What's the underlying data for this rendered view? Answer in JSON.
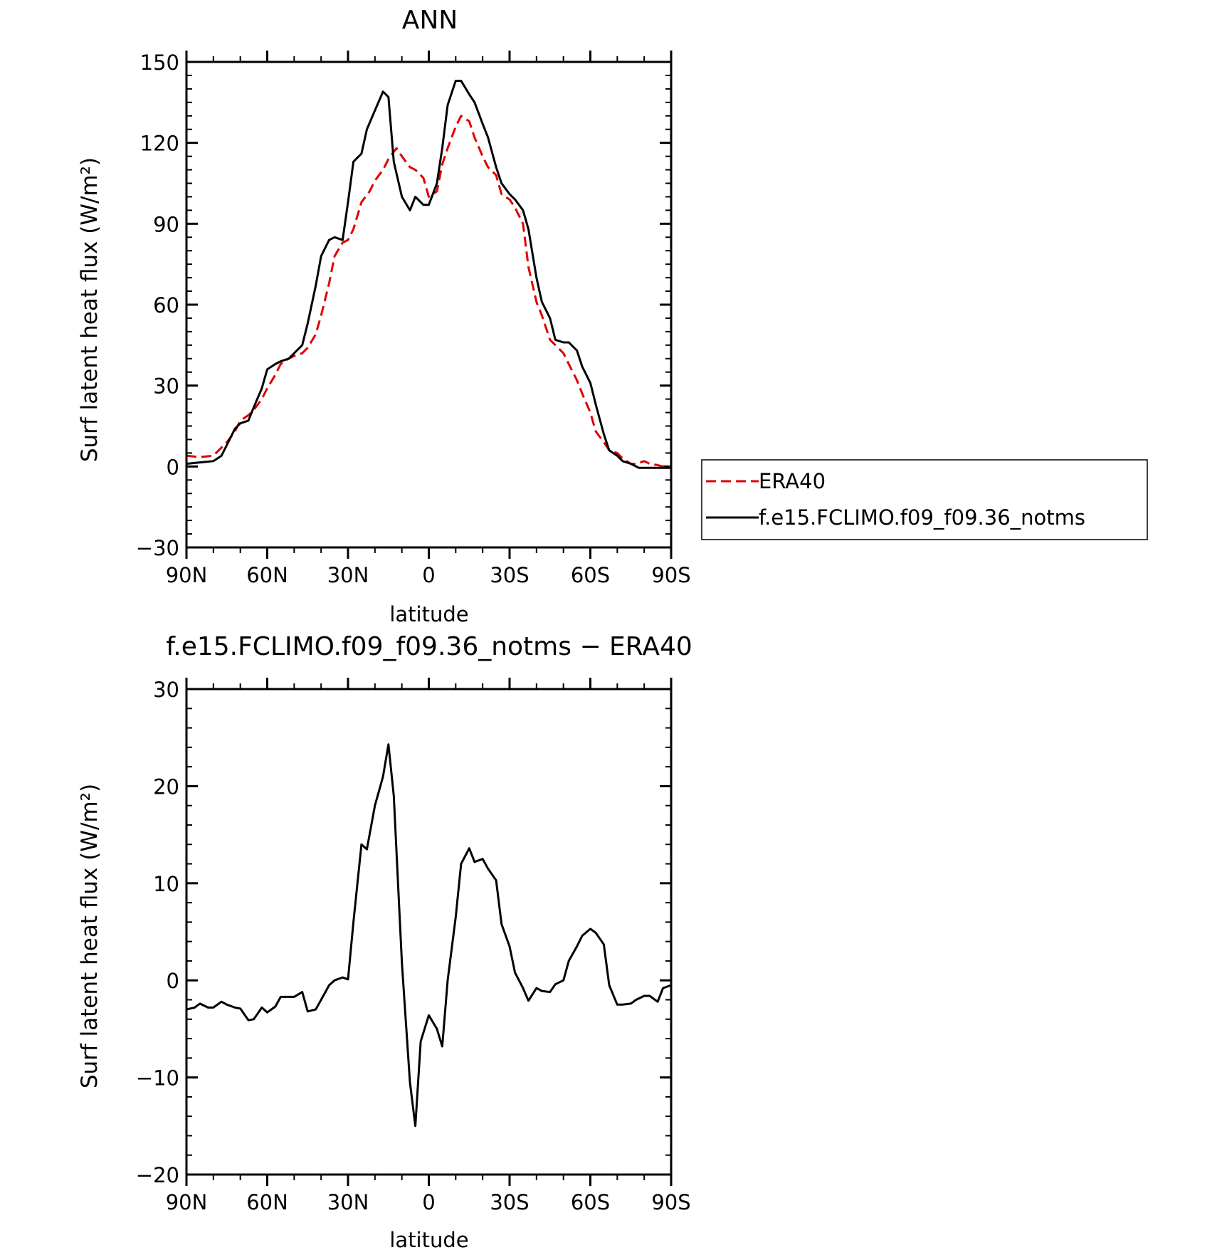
{
  "chart_data": [
    {
      "type": "line",
      "title": "ANN",
      "xlabel": "latitude",
      "ylabel": "Surf latent heat flux (W/m²)",
      "xlim": [
        90,
        -90
      ],
      "ylim": [
        -30,
        150
      ],
      "x_ticks": [
        {
          "value": 90,
          "label": "90N"
        },
        {
          "value": 60,
          "label": "60N"
        },
        {
          "value": 30,
          "label": "30N"
        },
        {
          "value": 0,
          "label": "0"
        },
        {
          "value": -30,
          "label": "30S"
        },
        {
          "value": -60,
          "label": "60S"
        },
        {
          "value": -90,
          "label": "90S"
        }
      ],
      "y_ticks": [
        {
          "value": -30,
          "label": "−30"
        },
        {
          "value": 0,
          "label": "0"
        },
        {
          "value": 30,
          "label": "30"
        },
        {
          "value": 60,
          "label": "60"
        },
        {
          "value": 90,
          "label": "90"
        },
        {
          "value": 120,
          "label": "120"
        },
        {
          "value": 150,
          "label": "150"
        }
      ],
      "legend_position": "right",
      "series": [
        {
          "name": "ERA40",
          "color": "#e00000",
          "dash": "dashed",
          "x": [
            90,
            85,
            80,
            75,
            72,
            70,
            67,
            65,
            62,
            60,
            57,
            55,
            52,
            50,
            47,
            45,
            42,
            40,
            37,
            35,
            32,
            30,
            28,
            25,
            22,
            20,
            17,
            15,
            12,
            10,
            7,
            5,
            2,
            0,
            -3,
            -5,
            -7,
            -10,
            -12,
            -15,
            -17,
            -20,
            -22,
            -25,
            -27,
            -30,
            -32,
            -35,
            -37,
            -40,
            -42,
            -45,
            -47,
            -50,
            -52,
            -55,
            -57,
            -60,
            -62,
            -65,
            -67,
            -70,
            -72,
            -75,
            -77,
            -80,
            -82,
            -85,
            -87,
            -90
          ],
          "y": [
            4,
            3.5,
            4,
            9,
            13,
            17,
            19,
            21,
            25,
            29,
            34,
            38,
            40,
            41,
            42,
            44,
            49,
            56,
            68,
            78,
            83,
            84,
            88,
            98,
            102,
            106,
            110,
            114,
            118,
            115,
            111,
            110,
            107,
            100,
            102,
            112,
            118,
            126,
            130,
            128,
            122,
            115,
            111,
            108,
            101,
            99,
            96,
            90,
            74,
            61,
            56,
            47,
            45,
            42,
            38,
            32,
            27,
            20,
            13,
            9,
            6,
            5,
            3,
            1,
            1,
            2,
            1,
            0.5,
            0,
            0
          ]
        },
        {
          "name": "f.e15.FCLIMO.f09_f09.36_notms",
          "color": "#000000",
          "dash": "solid",
          "x": [
            90,
            85,
            80,
            77,
            75,
            72,
            70,
            67,
            65,
            62,
            60,
            57,
            55,
            52,
            50,
            47,
            45,
            42,
            40,
            37,
            35,
            32,
            30,
            28,
            25,
            23,
            20,
            17,
            15,
            13,
            10,
            7,
            5,
            2,
            0,
            -3,
            -5,
            -7,
            -10,
            -12,
            -15,
            -17,
            -20,
            -22,
            -25,
            -27,
            -30,
            -32,
            -35,
            -37,
            -40,
            -42,
            -45,
            -47,
            -50,
            -52,
            -55,
            -57,
            -60,
            -62,
            -65,
            -67,
            -70,
            -72,
            -75,
            -78,
            -80,
            -82,
            -85,
            -87,
            -90
          ],
          "y": [
            1,
            1.5,
            2,
            4,
            8,
            14,
            16,
            17,
            22,
            29,
            36,
            38,
            39,
            40,
            42,
            45,
            53,
            67,
            78,
            84,
            85,
            84,
            98,
            113,
            116,
            125,
            132,
            139,
            137,
            113,
            100,
            95,
            100,
            97,
            97,
            105,
            118,
            134,
            143,
            143,
            138,
            135,
            127,
            122,
            111,
            105,
            101,
            99,
            95,
            88,
            70,
            61,
            55,
            47,
            46,
            46,
            43,
            37,
            31,
            23,
            12,
            6,
            4,
            2,
            1,
            -0.5,
            -0.5,
            -0.5,
            -0.5,
            -0.5,
            -0.5
          ]
        }
      ]
    },
    {
      "type": "line",
      "title": "f.e15.FCLIMO.f09_f09.36_notms − ERA40",
      "xlabel": "latitude",
      "ylabel": "Surf latent heat flux (W/m²)",
      "xlim": [
        90,
        -90
      ],
      "ylim": [
        -20,
        30
      ],
      "x_ticks": [
        {
          "value": 90,
          "label": "90N"
        },
        {
          "value": 60,
          "label": "60N"
        },
        {
          "value": 30,
          "label": "30N"
        },
        {
          "value": 0,
          "label": "0"
        },
        {
          "value": -30,
          "label": "30S"
        },
        {
          "value": -60,
          "label": "60S"
        },
        {
          "value": -90,
          "label": "90S"
        }
      ],
      "y_ticks": [
        {
          "value": -20,
          "label": "−20"
        },
        {
          "value": -10,
          "label": "−10"
        },
        {
          "value": 0,
          "label": "0"
        },
        {
          "value": 10,
          "label": "10"
        },
        {
          "value": 20,
          "label": "20"
        },
        {
          "value": 30,
          "label": "30"
        }
      ],
      "series": [
        {
          "color": "#000000",
          "dash": "solid",
          "x": [
            90,
            87,
            85,
            82,
            80,
            77,
            75,
            72,
            70,
            67,
            65,
            62,
            60,
            57,
            55,
            52,
            50,
            47,
            45,
            42,
            40,
            37,
            35,
            32,
            30,
            28,
            25,
            23,
            20,
            17,
            15,
            13,
            10,
            7,
            5,
            3,
            0,
            -3,
            -5,
            -7,
            -10,
            -12,
            -15,
            -17,
            -20,
            -22,
            -25,
            -27,
            -30,
            -32,
            -35,
            -37,
            -40,
            -42,
            -45,
            -47,
            -50,
            -52,
            -55,
            -57,
            -60,
            -62,
            -65,
            -67,
            -70,
            -72,
            -75,
            -77,
            -80,
            -82,
            -85,
            -87,
            -90
          ],
          "y": [
            -3,
            -2.8,
            -2.4,
            -2.8,
            -2.8,
            -2.2,
            -2.5,
            -2.8,
            -2.9,
            -4.1,
            -4.0,
            -2.8,
            -3.3,
            -2.7,
            -1.7,
            -1.7,
            -1.7,
            -1.2,
            -3.2,
            -3.0,
            -2.0,
            -0.5,
            0.0,
            0.3,
            0.1,
            6.0,
            14.0,
            13.5,
            18.0,
            21.0,
            24.3,
            19.0,
            1.8,
            -10.5,
            -15.0,
            -6.3,
            -3.6,
            -5.0,
            -6.8,
            0.0,
            6.5,
            12.0,
            13.6,
            12.2,
            12.5,
            11.5,
            10.3,
            5.8,
            3.5,
            0.8,
            -0.8,
            -2.1,
            -0.8,
            -1.1,
            -1.2,
            -0.4,
            0.0,
            2.0,
            3.5,
            4.6,
            5.3,
            4.9,
            3.7,
            -0.5,
            -2.5,
            -2.5,
            -2.4,
            -2.0,
            -1.6,
            -1.6,
            -2.2,
            -0.8,
            -0.5
          ]
        }
      ]
    }
  ]
}
